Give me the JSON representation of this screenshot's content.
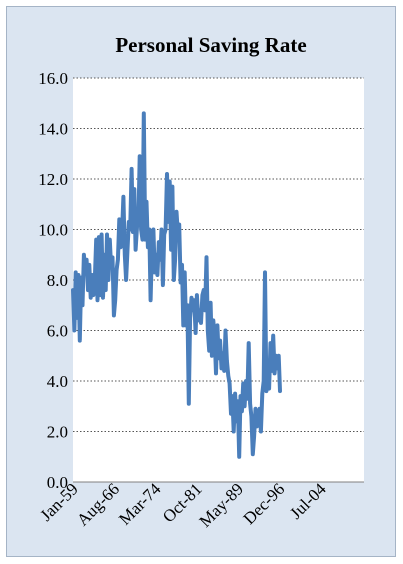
{
  "chart_data": {
    "type": "line",
    "title": "Personal Saving Rate",
    "xlabel": "",
    "ylabel": "",
    "ylim": [
      0,
      16
    ],
    "y_ticks": [
      "0.0",
      "2.0",
      "4.0",
      "6.0",
      "8.0",
      "10.0",
      "12.0",
      "14.0",
      "16.0"
    ],
    "x_tick_labels": [
      "Jan-59",
      "Aug-66",
      "Mar-74",
      "Oct-81",
      "May-89",
      "Dec-96",
      "Jul-04"
    ],
    "x_range": [
      "1959-01",
      "2012-06"
    ],
    "grid": "horizontal dotted",
    "legend": "none",
    "colors": {
      "line": "#4a7ebb",
      "plot_bg": "#ffffff",
      "frame_bg": "#dbe5f1"
    },
    "series": [
      {
        "values": [
          [
            "1959-01",
            7.6
          ],
          [
            "1959-04",
            6.0
          ],
          [
            "1959-07",
            8.3
          ],
          [
            "1959-10",
            6.5
          ],
          [
            "1960-01",
            8.2
          ],
          [
            "1960-04",
            5.6
          ],
          [
            "1960-07",
            8.1
          ],
          [
            "1960-10",
            7.0
          ],
          [
            "1961-01",
            9.0
          ],
          [
            "1961-04",
            8.3
          ],
          [
            "1961-07",
            8.8
          ],
          [
            "1961-10",
            7.6
          ],
          [
            "1962-01",
            8.6
          ],
          [
            "1962-04",
            7.3
          ],
          [
            "1962-07",
            8.2
          ],
          [
            "1962-10",
            7.4
          ],
          [
            "1963-01",
            8.0
          ],
          [
            "1963-04",
            9.6
          ],
          [
            "1963-07",
            7.2
          ],
          [
            "1963-10",
            9.7
          ],
          [
            "1964-01",
            7.4
          ],
          [
            "1964-04",
            9.8
          ],
          [
            "1964-07",
            7.3
          ],
          [
            "1964-10",
            9.0
          ],
          [
            "1965-01",
            7.6
          ],
          [
            "1965-04",
            9.8
          ],
          [
            "1965-07",
            8.0
          ],
          [
            "1965-10",
            9.6
          ],
          [
            "1966-01",
            8.5
          ],
          [
            "1966-04",
            8.9
          ],
          [
            "1966-07",
            6.6
          ],
          [
            "1966-10",
            7.2
          ],
          [
            "1967-01",
            8.4
          ],
          [
            "1967-04",
            8.8
          ],
          [
            "1967-07",
            10.4
          ],
          [
            "1967-10",
            9.3
          ],
          [
            "1968-01",
            9.8
          ],
          [
            "1968-04",
            11.3
          ],
          [
            "1968-07",
            9.0
          ],
          [
            "1968-10",
            8.0
          ],
          [
            "1969-01",
            9.2
          ],
          [
            "1969-04",
            10.3
          ],
          [
            "1969-07",
            10.0
          ],
          [
            "1969-10",
            12.4
          ],
          [
            "1970-01",
            9.9
          ],
          [
            "1970-04",
            11.6
          ],
          [
            "1970-07",
            9.2
          ],
          [
            "1970-10",
            10.1
          ],
          [
            "1971-01",
            10.3
          ],
          [
            "1971-04",
            12.9
          ],
          [
            "1971-07",
            10.0
          ],
          [
            "1971-10",
            9.6
          ],
          [
            "1972-01",
            14.6
          ],
          [
            "1972-04",
            9.6
          ],
          [
            "1972-07",
            11.1
          ],
          [
            "1972-10",
            9.3
          ],
          [
            "1973-01",
            10.0
          ],
          [
            "1973-04",
            7.2
          ],
          [
            "1973-07",
            9.4
          ],
          [
            "1973-10",
            10.0
          ],
          [
            "1974-01",
            8.3
          ],
          [
            "1974-04",
            9.0
          ],
          [
            "1974-07",
            8.2
          ],
          [
            "1974-10",
            9.5
          ],
          [
            "1975-01",
            8.8
          ],
          [
            "1975-04",
            10.0
          ],
          [
            "1975-07",
            7.8
          ],
          [
            "1975-10",
            9.8
          ],
          [
            "1976-01",
            10.0
          ],
          [
            "1976-04",
            12.2
          ],
          [
            "1976-07",
            10.3
          ],
          [
            "1976-10",
            11.9
          ],
          [
            "1977-01",
            9.2
          ],
          [
            "1977-04",
            11.7
          ],
          [
            "1977-07",
            8.0
          ],
          [
            "1977-10",
            8.8
          ],
          [
            "1978-01",
            10.7
          ],
          [
            "1978-04",
            9.8
          ],
          [
            "1978-07",
            10.2
          ],
          [
            "1978-10",
            7.9
          ],
          [
            "1979-01",
            8.6
          ],
          [
            "1979-04",
            6.2
          ],
          [
            "1979-07",
            8.3
          ],
          [
            "1979-10",
            6.2
          ],
          [
            "1980-01",
            7.0
          ],
          [
            "1980-04",
            3.1
          ],
          [
            "1980-07",
            6.5
          ],
          [
            "1980-10",
            7.3
          ],
          [
            "1981-01",
            6.8
          ],
          [
            "1981-04",
            7.2
          ],
          [
            "1981-07",
            5.9
          ],
          [
            "1981-10",
            7.4
          ],
          [
            "1982-01",
            6.4
          ],
          [
            "1982-04",
            6.8
          ],
          [
            "1982-07",
            6.3
          ],
          [
            "1982-10",
            7.4
          ],
          [
            "1983-01",
            7.6
          ],
          [
            "1983-04",
            6.8
          ],
          [
            "1983-07",
            8.9
          ],
          [
            "1983-10",
            6.0
          ],
          [
            "1984-01",
            5.2
          ],
          [
            "1984-04",
            7.1
          ],
          [
            "1984-07",
            5.0
          ],
          [
            "1984-10",
            6.4
          ],
          [
            "1985-01",
            5.8
          ],
          [
            "1985-04",
            4.3
          ],
          [
            "1985-07",
            6.2
          ],
          [
            "1985-10",
            4.9
          ],
          [
            "1986-01",
            5.6
          ],
          [
            "1986-04",
            4.5
          ],
          [
            "1986-07",
            5.1
          ],
          [
            "1986-10",
            4.4
          ],
          [
            "1987-01",
            6.0
          ],
          [
            "1987-04",
            4.8
          ],
          [
            "1987-07",
            4.2
          ],
          [
            "1987-10",
            3.9
          ],
          [
            "1988-01",
            2.7
          ],
          [
            "1988-04",
            3.4
          ],
          [
            "1988-07",
            2.0
          ],
          [
            "1988-10",
            3.5
          ],
          [
            "1989-01",
            2.4
          ],
          [
            "1989-04",
            3.2
          ],
          [
            "1989-07",
            1.0
          ],
          [
            "1989-10",
            3.4
          ],
          [
            "1990-01",
            2.8
          ],
          [
            "1990-04",
            3.9
          ],
          [
            "1990-07",
            3.0
          ],
          [
            "1990-10",
            4.0
          ],
          [
            "1991-01",
            3.3
          ],
          [
            "1991-04",
            5.5
          ],
          [
            "1991-07",
            3.1
          ],
          [
            "1991-10",
            2.6
          ],
          [
            "1992-01",
            1.1
          ],
          [
            "1992-04",
            1.8
          ],
          [
            "1992-07",
            2.9
          ],
          [
            "1992-10",
            2.2
          ],
          [
            "1993-01",
            2.6
          ],
          [
            "1993-04",
            2.9
          ],
          [
            "1993-07",
            2.0
          ],
          [
            "1993-10",
            3.5
          ],
          [
            "1994-01",
            4.0
          ],
          [
            "1994-04",
            8.3
          ],
          [
            "1994-07",
            3.6
          ],
          [
            "1994-10",
            4.5
          ],
          [
            "1995-01",
            3.7
          ],
          [
            "1995-04",
            5.5
          ],
          [
            "1995-07",
            4.4
          ],
          [
            "1995-10",
            5.8
          ],
          [
            "1996-01",
            4.3
          ],
          [
            "1996-04",
            5.0
          ],
          [
            "1996-07",
            4.5
          ],
          [
            "1996-10",
            5.0
          ],
          [
            "1997-01",
            3.6
          ]
        ]
      }
    ]
  }
}
